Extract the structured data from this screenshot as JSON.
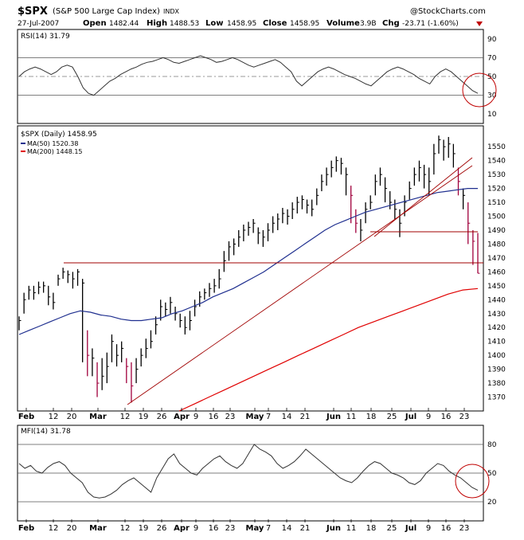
{
  "header": {
    "symbol": "$SPX",
    "name": "(S&P 500 Large Cap Index)",
    "exchange": "INDX",
    "date": "27-Jul-2007",
    "open_label": "Open",
    "open": "1482.44",
    "high_label": "High",
    "high": "1488.53",
    "low_label": "Low",
    "low": "1458.95",
    "close_label": "Close",
    "close": "1458.95",
    "volume_label": "Volume",
    "volume": "3.9B",
    "chg_label": "Chg",
    "chg": "-23.71 (-1.60%)",
    "watermark": "@StockCharts.com",
    "copyright": "©"
  },
  "colors": {
    "price_bar": "#000000",
    "price_down_bar": "#a0003c",
    "ma50": "#1f2f8f",
    "ma200": "#e00000",
    "trendline": "#a00000",
    "circle": "#c00000"
  },
  "rsi_panel": {
    "label": "RSI(14) 31.79",
    "ticks": [
      "90",
      "70",
      "50",
      "30",
      "10"
    ]
  },
  "mfi_panel": {
    "label": "MFI(14) 31.78",
    "ticks": [
      "80",
      "50",
      "20"
    ]
  },
  "price_panel": {
    "label": "$SPX (Daily) 1458.95",
    "ma50_label": "MA(50) 1520.38",
    "ma200_label": "MA(200) 1448.15"
  },
  "x_axis": {
    "labels": [
      "Feb",
      "12",
      "20",
      "Mar",
      "12",
      "19",
      "26",
      "Apr",
      "9",
      "16",
      "23",
      "May",
      "7",
      "14",
      "21",
      "Jun",
      "11",
      "18",
      "25",
      "Jul",
      "9",
      "16",
      "23"
    ]
  },
  "chart_data": {
    "type": "line",
    "series": [
      {
        "name": "$SPX (Daily) 1458.95",
        "close": [
          1425,
          1440,
          1447,
          1445,
          1449,
          1450,
          1442,
          1438,
          1455,
          1460,
          1458,
          1455,
          1460,
          1452,
          1400,
          1398,
          1380,
          1385,
          1392,
          1410,
          1400,
          1405,
          1392,
          1378,
          1390,
          1400,
          1405,
          1410,
          1422,
          1435,
          1433,
          1438,
          1430,
          1425,
          1420,
          1425,
          1435,
          1442,
          1445,
          1448,
          1450,
          1455,
          1468,
          1478,
          1480,
          1485,
          1490,
          1492,
          1495,
          1488,
          1485,
          1490,
          1495,
          1498,
          1502,
          1500,
          1505,
          1510,
          1512,
          1508,
          1505,
          1515,
          1525,
          1530,
          1535,
          1540,
          1538,
          1530,
          1515,
          1495,
          1490,
          1505,
          1510,
          1525,
          1530,
          1520,
          1510,
          1505,
          1495,
          1510,
          1520,
          1530,
          1535,
          1530,
          1525,
          1545,
          1555,
          1550,
          1552,
          1545,
          1525,
          1515,
          1495,
          1482,
          1459
        ],
        "high": [
          1428,
          1445,
          1450,
          1450,
          1453,
          1453,
          1450,
          1445,
          1458,
          1463,
          1461,
          1460,
          1462,
          1455,
          1418,
          1405,
          1395,
          1398,
          1402,
          1415,
          1408,
          1410,
          1398,
          1395,
          1398,
          1405,
          1412,
          1418,
          1428,
          1440,
          1438,
          1442,
          1435,
          1430,
          1428,
          1432,
          1440,
          1446,
          1448,
          1452,
          1455,
          1462,
          1475,
          1482,
          1484,
          1490,
          1494,
          1496,
          1498,
          1492,
          1490,
          1495,
          1500,
          1502,
          1506,
          1505,
          1510,
          1514,
          1515,
          1512,
          1512,
          1520,
          1530,
          1535,
          1540,
          1543,
          1542,
          1535,
          1522,
          1505,
          1498,
          1510,
          1515,
          1530,
          1535,
          1528,
          1518,
          1512,
          1505,
          1515,
          1525,
          1535,
          1540,
          1537,
          1535,
          1552,
          1558,
          1555,
          1557,
          1552,
          1535,
          1520,
          1510,
          1490,
          1488
        ],
        "low": [
          1418,
          1430,
          1440,
          1440,
          1444,
          1445,
          1436,
          1433,
          1450,
          1455,
          1452,
          1448,
          1450,
          1395,
          1385,
          1385,
          1370,
          1375,
          1380,
          1395,
          1392,
          1395,
          1380,
          1366,
          1380,
          1392,
          1398,
          1405,
          1415,
          1425,
          1428,
          1430,
          1425,
          1420,
          1415,
          1418,
          1428,
          1435,
          1440,
          1442,
          1445,
          1448,
          1460,
          1468,
          1472,
          1478,
          1482,
          1486,
          1488,
          1480,
          1478,
          1482,
          1488,
          1490,
          1495,
          1494,
          1498,
          1502,
          1505,
          1502,
          1500,
          1508,
          1518,
          1522,
          1528,
          1532,
          1530,
          1515,
          1495,
          1488,
          1482,
          1495,
          1505,
          1515,
          1522,
          1510,
          1505,
          1498,
          1485,
          1500,
          1512,
          1522,
          1525,
          1520,
          1515,
          1530,
          1545,
          1540,
          1542,
          1535,
          1515,
          1505,
          1480,
          1465,
          1459
        ]
      },
      {
        "name": "MA(50) 1520.38"
      },
      {
        "name": "MA(200) 1448.15"
      }
    ],
    "price_ylim": [
      1360,
      1565
    ],
    "price_ticks": [
      1370,
      1380,
      1390,
      1400,
      1410,
      1420,
      1430,
      1440,
      1450,
      1460,
      1470,
      1480,
      1490,
      1500,
      1510,
      1520,
      1530,
      1540,
      1550
    ],
    "ma50": [
      1415,
      1418,
      1421,
      1424,
      1427,
      1430,
      1432,
      1431,
      1429,
      1428,
      1426,
      1425,
      1425,
      1426,
      1427,
      1430,
      1432,
      1435,
      1438,
      1442,
      1445,
      1448,
      1452,
      1456,
      1460,
      1465,
      1470,
      1475,
      1480,
      1485,
      1490,
      1494,
      1497,
      1500,
      1503,
      1505,
      1507,
      1509,
      1511,
      1513,
      1515,
      1517,
      1518,
      1519,
      1520,
      1520
    ],
    "ma200": [
      1360,
      1365,
      1370,
      1375,
      1380,
      1385,
      1390,
      1395,
      1400,
      1405,
      1410,
      1415,
      1420,
      1424,
      1428,
      1432,
      1436,
      1440,
      1444,
      1447,
      1448
    ],
    "rsi": [
      50,
      55,
      58,
      60,
      58,
      55,
      52,
      55,
      60,
      62,
      60,
      50,
      38,
      32,
      30,
      35,
      40,
      45,
      48,
      52,
      55,
      58,
      60,
      63,
      65,
      66,
      68,
      70,
      68,
      65,
      64,
      66,
      68,
      70,
      72,
      70,
      68,
      65,
      66,
      68,
      70,
      68,
      65,
      62,
      60,
      62,
      64,
      66,
      68,
      65,
      60,
      55,
      45,
      40,
      45,
      50,
      55,
      58,
      60,
      58,
      55,
      52,
      50,
      48,
      45,
      42,
      40,
      45,
      50,
      55,
      58,
      60,
      58,
      55,
      52,
      48,
      45,
      42,
      50,
      55,
      58,
      55,
      50,
      45,
      40,
      35,
      32
    ],
    "rsi_ylim": [
      0,
      100
    ],
    "mfi": [
      60,
      55,
      58,
      52,
      50,
      56,
      60,
      62,
      58,
      50,
      45,
      40,
      30,
      25,
      24,
      25,
      28,
      32,
      38,
      42,
      45,
      40,
      35,
      30,
      45,
      55,
      65,
      70,
      60,
      55,
      50,
      48,
      55,
      60,
      65,
      68,
      62,
      58,
      55,
      60,
      70,
      80,
      75,
      72,
      68,
      60,
      55,
      58,
      62,
      68,
      75,
      70,
      65,
      60,
      55,
      50,
      45,
      42,
      40,
      45,
      52,
      58,
      62,
      60,
      55,
      50,
      48,
      45,
      40,
      38,
      42,
      50,
      55,
      60,
      58,
      52,
      48,
      45,
      40,
      35,
      32
    ],
    "mfi_ylim": [
      0,
      100
    ]
  }
}
